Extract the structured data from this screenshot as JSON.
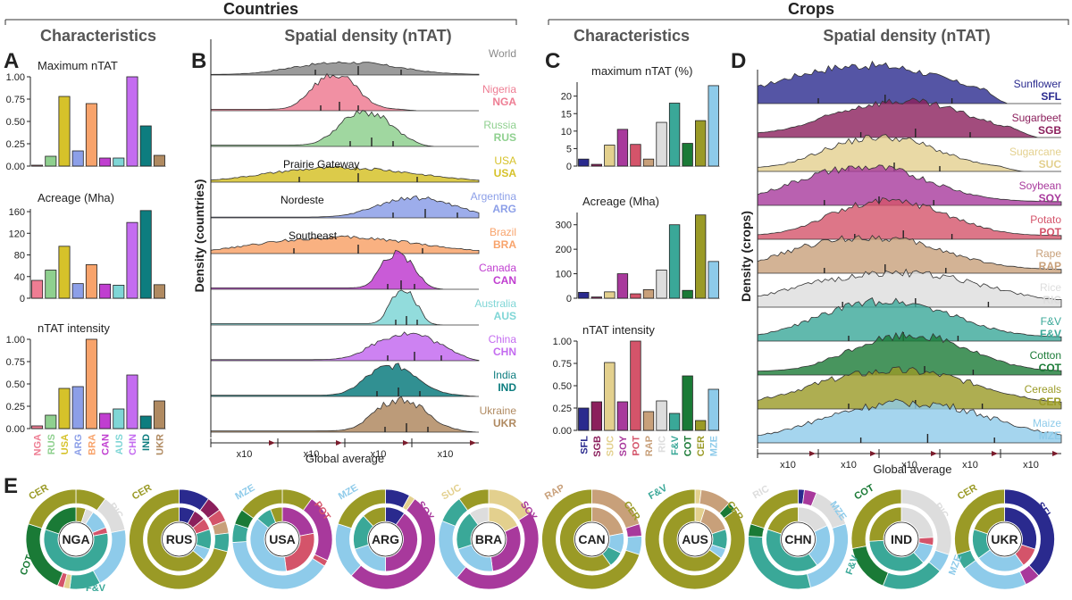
{
  "sections": {
    "countries": "Countries",
    "crops": "Crops"
  },
  "panels": {
    "A": {
      "letter": "A",
      "title": "Characteristics"
    },
    "B": {
      "letter": "B",
      "title": "Spatial density (nTAT)"
    },
    "C": {
      "letter": "C",
      "title": "Characteristics"
    },
    "D": {
      "letter": "D",
      "title": "Spatial density (nTAT)"
    },
    "E": {
      "letter": "E"
    }
  },
  "colors": {
    "NGA": "#ee7d93",
    "RUS": "#8fd08f",
    "USA": "#d6c22a",
    "ARG": "#8c9fe8",
    "BRA": "#f8a36b",
    "CAN": "#c03ed0",
    "AUS": "#7fd6d6",
    "CHN": "#c46cf0",
    "IND": "#0d7d7f",
    "UKR": "#b08a61",
    "World": "#8a8a8a",
    "SFL": "#2a2a8e",
    "SGB": "#8b1f5c",
    "SUC": "#e3d08e",
    "SOY": "#a8399c",
    "POT": "#d4546a",
    "RAP": "#c8a07a",
    "RIC": "#dddddd",
    "FV": "#3aa898",
    "COT": "#1a7a36",
    "CER": "#9a9a26",
    "MZE": "#8ecbea"
  },
  "chart_data": [
    {
      "id": "A1",
      "type": "bar",
      "title": "Maximum nTAT",
      "categories": [
        "NGA",
        "RUS",
        "USA",
        "ARG",
        "BRA",
        "CAN",
        "AUS",
        "CHN",
        "IND",
        "UKR"
      ],
      "values": [
        0.01,
        0.11,
        0.78,
        0.17,
        0.7,
        0.09,
        0.09,
        1.0,
        0.45,
        0.12
      ],
      "ylim": [
        0,
        1.0
      ],
      "yticks": [
        "0.00",
        "0.25",
        "0.50",
        "0.75",
        "1.00"
      ]
    },
    {
      "id": "A2",
      "type": "bar",
      "title": "Acreage (Mha)",
      "categories": [
        "NGA",
        "RUS",
        "USA",
        "ARG",
        "BRA",
        "CAN",
        "AUS",
        "CHN",
        "IND",
        "UKR"
      ],
      "values": [
        33,
        52,
        96,
        27,
        62,
        26,
        24,
        140,
        162,
        25
      ],
      "ylim": [
        0,
        165
      ],
      "yticks": [
        "0",
        "40",
        "80",
        "120",
        "160"
      ]
    },
    {
      "id": "A3",
      "type": "bar",
      "title": "nTAT intensity",
      "categories": [
        "NGA",
        "RUS",
        "USA",
        "ARG",
        "BRA",
        "CAN",
        "AUS",
        "CHN",
        "IND",
        "UKR"
      ],
      "values": [
        0.03,
        0.15,
        0.45,
        0.47,
        1.0,
        0.17,
        0.22,
        0.6,
        0.14,
        0.31
      ],
      "ylim": [
        0,
        1.0
      ],
      "yticks": [
        "0.00",
        "0.25",
        "0.50",
        "0.75",
        "1.00"
      ]
    },
    {
      "id": "B",
      "type": "area",
      "ylabel": "Density (countries)",
      "xlabel": "Global average",
      "xticks": [
        "x10",
        "x10",
        "x10",
        "x10"
      ],
      "series": [
        {
          "key": "World",
          "name": "World",
          "code": ""
        },
        {
          "key": "NGA",
          "name": "Nigeria",
          "code": "NGA"
        },
        {
          "key": "RUS",
          "name": "Russia",
          "code": "RUS"
        },
        {
          "key": "USA",
          "name": "USA",
          "code": "USA",
          "annotation": "Prairie Gateway"
        },
        {
          "key": "ARG",
          "name": "Argentina",
          "code": "ARG",
          "annotation": "Nordeste"
        },
        {
          "key": "BRA",
          "name": "Brazil",
          "code": "BRA",
          "annotation": "Southeast"
        },
        {
          "key": "CAN",
          "name": "Canada",
          "code": "CAN"
        },
        {
          "key": "AUS",
          "name": "Australia",
          "code": "AUS"
        },
        {
          "key": "CHN",
          "name": "China",
          "code": "CHN"
        },
        {
          "key": "IND",
          "name": "India",
          "code": "IND"
        },
        {
          "key": "UKR",
          "name": "Ukraine",
          "code": "UKR"
        }
      ]
    },
    {
      "id": "C1",
      "type": "bar",
      "title": "maximum nTAT (%)",
      "categories": [
        "SFL",
        "SGB",
        "SUC",
        "SOY",
        "POT",
        "RAP",
        "RIC",
        "FV",
        "COT",
        "CER",
        "MZE"
      ],
      "labels": [
        "SFL",
        "SGB",
        "SUC",
        "SOY",
        "POT",
        "RAP",
        "RIC",
        "F&V",
        "COT",
        "CER",
        "MZE"
      ],
      "values": [
        2.0,
        0.5,
        6.0,
        10.5,
        6.2,
        2.0,
        12.5,
        18.0,
        6.5,
        13.0,
        23.0
      ],
      "ylim": [
        0,
        24
      ],
      "yticks": [
        "0",
        "5",
        "10",
        "15",
        "20"
      ]
    },
    {
      "id": "C2",
      "type": "bar",
      "title": "Acreage (Mha)",
      "categories": [
        "SFL",
        "SGB",
        "SUC",
        "SOY",
        "POT",
        "RAP",
        "RIC",
        "FV",
        "COT",
        "CER",
        "MZE"
      ],
      "values": [
        24,
        5,
        26,
        100,
        18,
        35,
        115,
        300,
        32,
        340,
        150
      ],
      "ylim": [
        0,
        350
      ],
      "yticks": [
        "0",
        "100",
        "200",
        "300"
      ]
    },
    {
      "id": "C3",
      "type": "bar",
      "title": "nTAT intensity",
      "categories": [
        "SFL",
        "SGB",
        "SUC",
        "SOY",
        "POT",
        "RAP",
        "RIC",
        "FV",
        "COT",
        "CER",
        "MZE"
      ],
      "labels": [
        "SFL",
        "SGB",
        "SUC",
        "SOY",
        "POT",
        "RAP",
        "RIC",
        "F&V",
        "COT",
        "CER",
        "MZE"
      ],
      "values": [
        0.25,
        0.32,
        0.76,
        0.32,
        1.0,
        0.21,
        0.33,
        0.19,
        0.61,
        0.11,
        0.46
      ],
      "ylim": [
        0,
        1.0
      ],
      "yticks": [
        "0.00",
        "0.25",
        "0.50",
        "0.75",
        "1.00"
      ]
    },
    {
      "id": "D",
      "type": "area",
      "ylabel": "Density (crops)",
      "xlabel": "Global average",
      "xticks": [
        "x10",
        "x10",
        "x10",
        "x10",
        "x10"
      ],
      "series": [
        {
          "key": "SFL",
          "name": "Sunflower",
          "code": "SFL"
        },
        {
          "key": "SGB",
          "name": "Sugarbeet",
          "code": "SGB"
        },
        {
          "key": "SUC",
          "name": "Sugarcane",
          "code": "SUC"
        },
        {
          "key": "SOY",
          "name": "Soybean",
          "code": "SOY"
        },
        {
          "key": "POT",
          "name": "Potato",
          "code": "POT"
        },
        {
          "key": "RAP",
          "name": "Rape",
          "code": "RAP"
        },
        {
          "key": "RIC",
          "name": "Rice",
          "code": "RIC"
        },
        {
          "key": "FV",
          "name": "F&V",
          "code": "F&V"
        },
        {
          "key": "COT",
          "name": "Cotton",
          "code": "COT"
        },
        {
          "key": "CER",
          "name": "Cereals",
          "code": "CER"
        },
        {
          "key": "MZE",
          "name": "Maize",
          "code": "MZE"
        }
      ]
    },
    {
      "id": "E",
      "type": "pie",
      "donuts": [
        {
          "country": "NGA",
          "outer": [
            [
              "CER",
              0.1
            ],
            [
              "RIC",
              0.12
            ],
            [
              "MZE",
              0.2
            ],
            [
              "FV",
              0.1
            ],
            [
              "SUC",
              0.02
            ],
            [
              "POT",
              0.02
            ],
            [
              "COT",
              0.24
            ],
            [
              "CER",
              0.2
            ]
          ],
          "inner": [
            [
              "CER",
              0.05
            ],
            [
              "RIC",
              0.04
            ],
            [
              "MZE",
              0.1
            ],
            [
              "POT",
              0.03
            ],
            [
              "FV",
              0.58
            ],
            [
              "COT",
              0.2
            ]
          ],
          "labels": [
            "CER",
            "RIC",
            "COT",
            "F&V"
          ]
        },
        {
          "country": "RUS",
          "outer": [
            [
              "SFL",
              0.1
            ],
            [
              "SGB",
              0.05
            ],
            [
              "POT",
              0.04
            ],
            [
              "RAP",
              0.04
            ],
            [
              "FV",
              0.06
            ],
            [
              "CER",
              0.71
            ]
          ],
          "inner": [
            [
              "SFL",
              0.08
            ],
            [
              "SGB",
              0.06
            ],
            [
              "POT",
              0.06
            ],
            [
              "FV",
              0.1
            ],
            [
              "MZE",
              0.06
            ],
            [
              "CER",
              0.64
            ]
          ],
          "labels": [
            "CER"
          ]
        },
        {
          "country": "USA",
          "outer": [
            [
              "CER",
              0.1
            ],
            [
              "SOY",
              0.22
            ],
            [
              "POT",
              0.02
            ],
            [
              "MZE",
              0.4
            ],
            [
              "FV",
              0.06
            ],
            [
              "COT",
              0.05
            ],
            [
              "CER",
              0.15
            ]
          ],
          "inner": [
            [
              "SOY",
              0.22
            ],
            [
              "POT",
              0.26
            ],
            [
              "MZE",
              0.38
            ],
            [
              "FV",
              0.08
            ],
            [
              "CER",
              0.06
            ]
          ],
          "labels": [
            "MZE",
            "POT"
          ]
        },
        {
          "country": "ARG",
          "outer": [
            [
              "SFL",
              0.08
            ],
            [
              "SUC",
              0.02
            ],
            [
              "SOY",
              0.52
            ],
            [
              "MZE",
              0.18
            ],
            [
              "CER",
              0.2
            ]
          ],
          "inner": [
            [
              "SFL",
              0.1
            ],
            [
              "SOY",
              0.4
            ],
            [
              "MZE",
              0.2
            ],
            [
              "FV",
              0.18
            ],
            [
              "CER",
              0.12
            ]
          ],
          "labels": [
            "MZE",
            "SOY"
          ]
        },
        {
          "country": "BRA",
          "outer": [
            [
              "SUC",
              0.16
            ],
            [
              "SOY",
              0.45
            ],
            [
              "MZE",
              0.2
            ],
            [
              "FV",
              0.09
            ],
            [
              "CER",
              0.1
            ]
          ],
          "inner": [
            [
              "SUC",
              0.18
            ],
            [
              "SOY",
              0.3
            ],
            [
              "MZE",
              0.22
            ],
            [
              "FV",
              0.2
            ],
            [
              "RIC",
              0.1
            ]
          ],
          "labels": [
            "SUC",
            "SOY"
          ]
        },
        {
          "country": "CAN",
          "outer": [
            [
              "RAP",
              0.2
            ],
            [
              "SOY",
              0.04
            ],
            [
              "MZE",
              0.06
            ],
            [
              "CER",
              0.7
            ]
          ],
          "inner": [
            [
              "RAP",
              0.22
            ],
            [
              "MZE",
              0.1
            ],
            [
              "FV",
              0.08
            ],
            [
              "CER",
              0.6
            ]
          ],
          "labels": [
            "RAP",
            "CER"
          ]
        },
        {
          "country": "AUS",
          "outer": [
            [
              "SUC",
              0.02
            ],
            [
              "RAP",
              0.1
            ],
            [
              "COT",
              0.03
            ],
            [
              "CER",
              0.85
            ]
          ],
          "inner": [
            [
              "SUC",
              0.05
            ],
            [
              "RAP",
              0.15
            ],
            [
              "FV",
              0.1
            ],
            [
              "MZE",
              0.05
            ],
            [
              "CER",
              0.65
            ]
          ],
          "labels": [
            "F&V",
            "CER"
          ]
        },
        {
          "country": "CHN",
          "outer": [
            [
              "SFL",
              0.02
            ],
            [
              "SOY",
              0.04
            ],
            [
              "RIC",
              0.14
            ],
            [
              "MZE",
              0.26
            ],
            [
              "FV",
              0.3
            ],
            [
              "COT",
              0.04
            ],
            [
              "CER",
              0.2
            ]
          ],
          "inner": [
            [
              "RIC",
              0.18
            ],
            [
              "MZE",
              0.22
            ],
            [
              "FV",
              0.4
            ],
            [
              "CER",
              0.2
            ]
          ],
          "labels": [
            "RIC",
            "MZE"
          ]
        },
        {
          "country": "IND",
          "outer": [
            [
              "RIC",
              0.3
            ],
            [
              "MZE",
              0.06
            ],
            [
              "FV",
              0.2
            ],
            [
              "COT",
              0.16
            ],
            [
              "CER",
              0.28
            ]
          ],
          "inner": [
            [
              "RIC",
              0.24
            ],
            [
              "POT",
              0.04
            ],
            [
              "MZE",
              0.1
            ],
            [
              "FV",
              0.36
            ],
            [
              "CER",
              0.26
            ]
          ],
          "labels": [
            "COT",
            "RIC",
            "F&V"
          ]
        },
        {
          "country": "UKR",
          "outer": [
            [
              "SFL",
              0.38
            ],
            [
              "SOY",
              0.05
            ],
            [
              "MZE",
              0.22
            ],
            [
              "FV",
              0.05
            ],
            [
              "CER",
              0.3
            ]
          ],
          "inner": [
            [
              "SFL",
              0.3
            ],
            [
              "POT",
              0.1
            ],
            [
              "MZE",
              0.25
            ],
            [
              "FV",
              0.15
            ],
            [
              "CER",
              0.2
            ]
          ],
          "labels": [
            "CER",
            "SFL",
            "MZE"
          ]
        }
      ]
    }
  ]
}
